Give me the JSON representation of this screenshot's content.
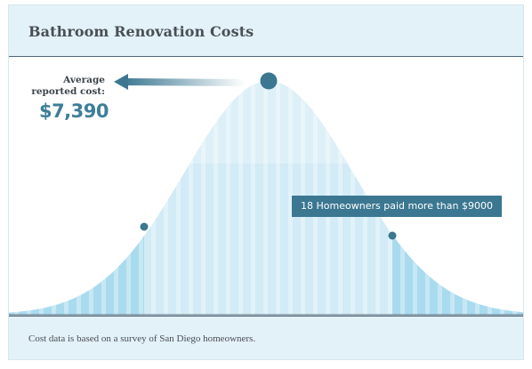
{
  "title": "Bathroom Renovation Costs",
  "footer": {
    "note": "Cost data is based on a survey of San Diego homeowners."
  },
  "annotation": {
    "average_label": "Average reported cost:",
    "average_value": "$7,390",
    "badge_text": "18 Homeowners paid more than $9000"
  },
  "colors": {
    "header_bg": "#e3f1f9",
    "curve_fill": "#d2ebf6",
    "curve_tail_fill": "#a9dbef",
    "marker": "#3b7791",
    "accent_text": "#3e7e98"
  },
  "chart_data": {
    "type": "area",
    "title": "Bathroom Renovation Costs",
    "shape": "bell curve (normal distribution)",
    "xlabel": "",
    "ylabel": "",
    "markers": [
      {
        "label": "Average reported cost",
        "value": 7390
      },
      {
        "label": "18 Homeowners paid more than $9000",
        "threshold": 9000,
        "count": 18
      }
    ],
    "highlighted_tails": [
      "left",
      "right"
    ],
    "grid": false
  }
}
